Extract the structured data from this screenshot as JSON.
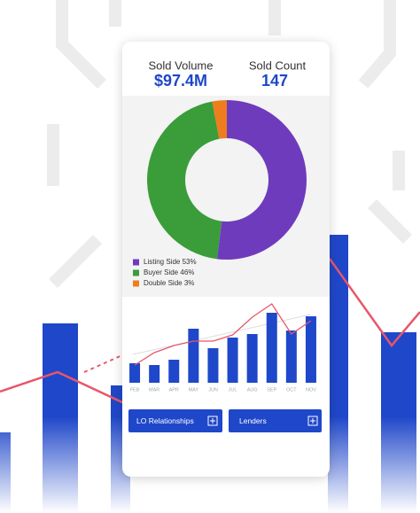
{
  "kpis": [
    {
      "label": "Sold Volume",
      "value": "$97.4M"
    },
    {
      "label": "Sold Count",
      "value": "147"
    }
  ],
  "chart_data": [
    {
      "type": "pie",
      "categories": [
        "Listing Side",
        "Buyer Side",
        "Double Side"
      ],
      "values": [
        53,
        46,
        3
      ],
      "value_labels": [
        "53%",
        "46%",
        "3%"
      ],
      "colors": [
        "#6f3bbd",
        "#3a9d3a",
        "#ee7d1e"
      ],
      "donut": true
    },
    {
      "type": "bar",
      "categories": [
        "FEB",
        "MAR",
        "APR",
        "MAY",
        "JUN",
        "JUL",
        "AUG",
        "SEP",
        "OCT",
        "NOV"
      ],
      "ylim": [
        0,
        100
      ],
      "series": [
        {
          "type": "bar",
          "color": "#1f47c9",
          "values": [
            22,
            20,
            26,
            61,
            39,
            51,
            55,
            79,
            59,
            75
          ]
        },
        {
          "type": "line",
          "color": "#e8566a",
          "values": [
            20,
            34,
            42,
            47,
            47,
            54,
            74,
            89,
            55,
            70
          ]
        }
      ]
    }
  ],
  "buttons": [
    "LO Relationships",
    "Lenders"
  ]
}
